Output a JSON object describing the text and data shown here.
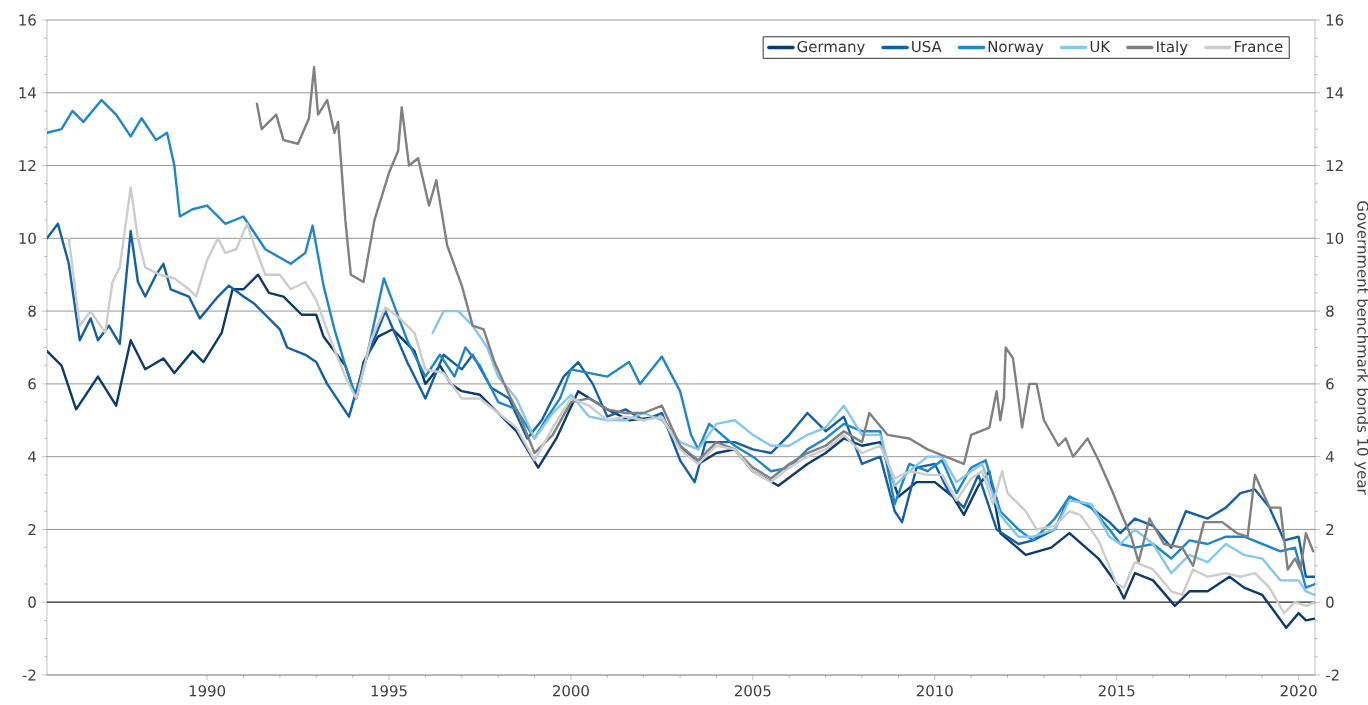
{
  "chart_data": {
    "type": "line",
    "y2label": "Government benchmark bonds 10 year",
    "xlim": [
      1985.6,
      2020.45
    ],
    "xticks": [
      1990,
      1995,
      2000,
      2005,
      2010,
      2015,
      2020
    ],
    "ylim": [
      -2,
      16
    ],
    "yticks": [
      -2,
      0,
      2,
      4,
      6,
      8,
      10,
      12,
      14,
      16
    ],
    "y2lim": [
      -2,
      16
    ],
    "y2ticks": [
      -2,
      0,
      2,
      4,
      6,
      8,
      10,
      12,
      14,
      16
    ],
    "grid": "y",
    "legend": "top right",
    "ref_lines": [
      {
        "axis": "y",
        "value": 0,
        "color": "#404040"
      }
    ],
    "series": [
      {
        "name": "Germany",
        "color": "#0b3a6b",
        "x": [
          1985.6,
          1986.0,
          1986.4,
          1987.0,
          1987.5,
          1987.9,
          1988.3,
          1988.8,
          1989.1,
          1989.6,
          1989.9,
          1990.4,
          1990.7,
          1991.0,
          1991.4,
          1991.7,
          1992.1,
          1992.6,
          1993.0,
          1993.2,
          1993.8,
          1994.1,
          1994.3,
          1994.7,
          1995.1,
          1995.7,
          1996.0,
          1996.4,
          1996.7,
          1997.0,
          1997.5,
          1998.0,
          1998.5,
          1999.1,
          1999.6,
          2000.2,
          2001.0,
          2001.6,
          2002.5,
          2003.0,
          2003.5,
          2004.0,
          2004.5,
          2005.0,
          2005.7,
          2006.5,
          2007.0,
          2007.5,
          2008.0,
          2008.5,
          2009.0,
          2009.5,
          2010.0,
          2010.5,
          2010.8,
          2011.2,
          2011.5,
          2011.8,
          2012.5,
          2013.2,
          2013.7,
          2014.5,
          2015.0,
          2015.2,
          2015.5,
          2016.0,
          2016.6,
          2017.0,
          2017.5,
          2018.1,
          2018.5,
          2019.0,
          2019.66,
          2020.0,
          2020.2,
          2020.45
        ],
        "values": [
          6.9,
          6.5,
          5.3,
          6.2,
          5.4,
          7.2,
          6.4,
          6.7,
          6.3,
          6.9,
          6.6,
          7.4,
          8.6,
          8.6,
          9.0,
          8.5,
          8.4,
          7.9,
          7.9,
          7.3,
          6.5,
          5.6,
          6.6,
          7.3,
          7.5,
          6.9,
          6.0,
          6.5,
          6.0,
          5.8,
          5.7,
          5.2,
          4.7,
          3.7,
          4.5,
          5.8,
          5.3,
          5.0,
          5.1,
          4.3,
          3.8,
          4.1,
          4.2,
          3.6,
          3.2,
          3.8,
          4.1,
          4.5,
          4.3,
          4.4,
          2.9,
          3.3,
          3.3,
          2.9,
          2.4,
          3.2,
          3.6,
          1.9,
          1.3,
          1.5,
          1.9,
          1.2,
          0.5,
          0.1,
          0.8,
          0.6,
          -0.1,
          0.3,
          0.3,
          0.7,
          0.4,
          0.2,
          -0.7,
          -0.3,
          -0.5,
          -0.45
        ]
      },
      {
        "name": "USA",
        "color": "#1560a5",
        "x": [
          1985.6,
          1985.9,
          1986.2,
          1986.5,
          1986.8,
          1987.0,
          1987.3,
          1987.6,
          1987.9,
          1988.1,
          1988.3,
          1988.6,
          1988.8,
          1989.0,
          1989.5,
          1989.8,
          1990.3,
          1990.6,
          1991.0,
          1991.3,
          1991.6,
          1992.0,
          1992.2,
          1992.7,
          1993.0,
          1993.3,
          1993.9,
          1994.3,
          1994.9,
          1995.5,
          1996.0,
          1996.5,
          1997.0,
          1997.3,
          1997.8,
          1998.3,
          1998.8,
          1999.2,
          1999.8,
          2000.2,
          2000.6,
          2001.0,
          2001.5,
          2002.0,
          2002.5,
          2003.0,
          2003.4,
          2003.7,
          2004.5,
          2005.0,
          2005.5,
          2006.0,
          2006.5,
          2007.0,
          2007.5,
          2008.0,
          2008.5,
          2008.9,
          2009.1,
          2009.5,
          2010.0,
          2010.4,
          2010.8,
          2011.2,
          2011.7,
          2012.3,
          2012.7,
          2013.3,
          2013.7,
          2014.3,
          2014.8,
          2015.1,
          2015.5,
          2016.0,
          2016.5,
          2016.9,
          2017.5,
          2018.0,
          2018.4,
          2018.8,
          2019.2,
          2019.6,
          2020.0,
          2020.2,
          2020.45
        ],
        "values": [
          10.0,
          10.4,
          9.3,
          7.2,
          7.8,
          7.2,
          7.6,
          7.1,
          10.2,
          8.8,
          8.4,
          9.0,
          9.3,
          8.6,
          8.4,
          7.8,
          8.4,
          8.7,
          8.4,
          8.2,
          7.9,
          7.5,
          7.0,
          6.8,
          6.6,
          6.0,
          5.1,
          6.5,
          8.0,
          6.6,
          5.6,
          6.8,
          6.4,
          6.8,
          5.9,
          5.6,
          4.5,
          5.0,
          6.2,
          6.6,
          6.0,
          5.1,
          5.3,
          5.0,
          5.2,
          3.9,
          3.3,
          4.4,
          4.4,
          4.2,
          4.1,
          4.6,
          5.2,
          4.7,
          5.1,
          3.8,
          4.0,
          2.5,
          2.2,
          3.7,
          3.8,
          3.0,
          2.6,
          3.5,
          2.0,
          1.6,
          1.7,
          2.0,
          2.9,
          2.6,
          2.2,
          1.9,
          2.3,
          2.1,
          1.5,
          2.5,
          2.3,
          2.6,
          3.0,
          3.1,
          2.6,
          1.7,
          1.8,
          0.7,
          0.7
        ]
      },
      {
        "name": "Norway",
        "color": "#2086c8",
        "x": [
          1985.6,
          1986.0,
          1986.3,
          1986.6,
          1987.1,
          1987.5,
          1987.9,
          1988.2,
          1988.6,
          1988.9,
          1989.1,
          1989.25,
          1989.6,
          1990.0,
          1990.5,
          1991.0,
          1991.6,
          1992.3,
          1992.7,
          1992.9,
          1993.2,
          1993.5,
          1993.8,
          1994.1,
          1994.4,
          1994.86,
          1995.2,
          1995.5,
          1996.0,
          1996.4,
          1996.8,
          1997.1,
          1997.5,
          1998.0,
          1998.5,
          1999.0,
          1999.3,
          1999.7,
          2000.0,
          2000.5,
          2001.0,
          2001.6,
          2001.9,
          2002.5,
          2003.0,
          2003.3,
          2003.5,
          2003.8,
          2004.5,
          2005.0,
          2005.5,
          2006.0,
          2006.5,
          2007.0,
          2007.5,
          2008.0,
          2008.5,
          2008.9,
          2009.3,
          2009.8,
          2010.2,
          2010.6,
          2011.0,
          2011.4,
          2011.8,
          2012.3,
          2012.7,
          2013.3,
          2013.7,
          2014.3,
          2014.8,
          2015.1,
          2015.5,
          2016.0,
          2016.5,
          2017.0,
          2017.5,
          2018.0,
          2018.5,
          2019.0,
          2019.5,
          2019.9,
          2020.2,
          2020.45
        ],
        "values": [
          12.9,
          13.0,
          13.5,
          13.2,
          13.8,
          13.4,
          12.8,
          13.3,
          12.7,
          12.9,
          12.0,
          10.6,
          10.8,
          10.9,
          10.4,
          10.6,
          9.7,
          9.3,
          9.6,
          10.35,
          8.7,
          7.5,
          6.5,
          5.6,
          6.8,
          8.9,
          8.0,
          7.2,
          6.2,
          6.8,
          6.2,
          7.0,
          6.5,
          5.5,
          5.3,
          4.5,
          5.0,
          5.6,
          6.4,
          6.3,
          6.2,
          6.6,
          6.0,
          6.75,
          5.8,
          4.6,
          4.2,
          4.9,
          4.3,
          4.0,
          3.6,
          3.7,
          4.2,
          4.5,
          4.9,
          4.7,
          4.7,
          2.7,
          3.8,
          3.6,
          3.9,
          3.0,
          3.7,
          3.9,
          2.5,
          2.0,
          1.7,
          2.3,
          2.9,
          2.6,
          2.0,
          1.6,
          1.5,
          1.6,
          1.2,
          1.7,
          1.6,
          1.8,
          1.8,
          1.6,
          1.4,
          1.5,
          0.4,
          0.5
        ]
      },
      {
        "name": "UK",
        "color": "#86c7ea",
        "x": [
          1996.2,
          1996.5,
          1996.9,
          1997.3,
          1997.7,
          1998.0,
          1998.5,
          1999.0,
          1999.5,
          2000.0,
          2000.5,
          2001.0,
          2001.5,
          2002.0,
          2002.5,
          2003.0,
          2003.5,
          2004.0,
          2004.5,
          2005.0,
          2005.5,
          2006.0,
          2006.5,
          2007.0,
          2007.5,
          2008.0,
          2008.5,
          2008.9,
          2009.3,
          2009.8,
          2010.2,
          2010.6,
          2011.0,
          2011.3,
          2011.8,
          2012.3,
          2012.7,
          2013.3,
          2013.7,
          2014.3,
          2014.8,
          2015.1,
          2015.5,
          2016.0,
          2016.5,
          2017.0,
          2017.5,
          2018.0,
          2018.5,
          2019.0,
          2019.5,
          2020.0,
          2020.2,
          2020.45
        ],
        "values": [
          7.4,
          8.0,
          8.0,
          7.6,
          7.0,
          6.2,
          5.6,
          4.5,
          5.2,
          5.7,
          5.1,
          5.0,
          5.0,
          5.2,
          5.0,
          4.4,
          4.2,
          4.9,
          5.0,
          4.6,
          4.3,
          4.3,
          4.6,
          4.8,
          5.4,
          4.6,
          4.6,
          3.2,
          3.6,
          4.0,
          4.0,
          3.3,
          3.6,
          3.8,
          2.4,
          1.8,
          1.8,
          2.0,
          2.8,
          2.7,
          1.8,
          1.6,
          2.0,
          1.6,
          0.8,
          1.3,
          1.1,
          1.6,
          1.3,
          1.2,
          0.6,
          0.6,
          0.3,
          0.2
        ]
      },
      {
        "name": "Italy",
        "color": "#808080",
        "x": [
          1991.37,
          1991.5,
          1991.9,
          1992.1,
          1992.5,
          1992.8,
          1992.94,
          1993.05,
          1993.3,
          1993.5,
          1993.6,
          1993.8,
          1993.95,
          1994.3,
          1994.6,
          1995.0,
          1995.25,
          1995.35,
          1995.55,
          1995.8,
          1996.1,
          1996.3,
          1996.6,
          1997.0,
          1997.3,
          1997.6,
          1997.9,
          1998.3,
          1998.6,
          1999.0,
          1999.5,
          2000.0,
          2000.5,
          2001.0,
          2001.5,
          2002.0,
          2002.5,
          2003.0,
          2003.5,
          2004.0,
          2004.5,
          2005.0,
          2005.5,
          2006.0,
          2006.5,
          2007.0,
          2007.5,
          2008.0,
          2008.2,
          2008.7,
          2009.3,
          2009.8,
          2010.3,
          2010.8,
          2011.0,
          2011.5,
          2011.7,
          2011.8,
          2011.9,
          2011.95,
          2012.15,
          2012.4,
          2012.6,
          2012.8,
          2013.0,
          2013.4,
          2013.6,
          2013.8,
          2014.2,
          2014.5,
          2014.9,
          2015.1,
          2015.4,
          2015.6,
          2015.9,
          2016.3,
          2016.8,
          2017.1,
          2017.4,
          2017.9,
          2018.3,
          2018.6,
          2018.8,
          2019.2,
          2019.5,
          2019.7,
          2019.9,
          2020.05,
          2020.2,
          2020.4
        ],
        "values": [
          13.7,
          13.0,
          13.4,
          12.7,
          12.6,
          13.3,
          14.7,
          13.4,
          13.8,
          12.9,
          13.2,
          10.5,
          9.0,
          8.8,
          10.5,
          11.8,
          12.4,
          13.6,
          12.0,
          12.2,
          10.9,
          11.6,
          9.8,
          8.7,
          7.6,
          7.5,
          6.6,
          5.7,
          5.1,
          4.1,
          4.6,
          5.5,
          5.6,
          5.3,
          5.2,
          5.2,
          5.4,
          4.3,
          3.9,
          4.4,
          4.2,
          3.7,
          3.4,
          3.8,
          4.1,
          4.3,
          4.7,
          4.4,
          5.2,
          4.6,
          4.5,
          4.2,
          4.0,
          3.8,
          4.6,
          4.8,
          5.8,
          5.0,
          5.6,
          7.0,
          6.7,
          4.8,
          6.0,
          6.0,
          5.0,
          4.3,
          4.5,
          4.0,
          4.5,
          3.9,
          3.0,
          2.5,
          1.8,
          1.1,
          2.3,
          1.6,
          1.5,
          1.0,
          2.2,
          2.2,
          1.9,
          1.8,
          3.5,
          2.6,
          2.6,
          0.9,
          1.2,
          0.9,
          1.9,
          1.4
        ]
      },
      {
        "name": "France",
        "color": "#cccccc",
        "x": [
          1986.2,
          1986.5,
          1986.8,
          1987.2,
          1987.4,
          1987.6,
          1987.9,
          1988.1,
          1988.3,
          1988.7,
          1989.1,
          1989.5,
          1989.7,
          1990.0,
          1990.3,
          1990.5,
          1990.8,
          1991.1,
          1991.3,
          1991.6,
          1992.0,
          1992.3,
          1992.7,
          1993.0,
          1993.4,
          1993.8,
          1994.1,
          1994.5,
          1994.9,
          1995.3,
          1995.7,
          1996.0,
          1996.5,
          1997.0,
          1997.5,
          1998.0,
          1998.5,
          1999.0,
          1999.5,
          2000.0,
          2000.5,
          2001.0,
          2001.5,
          2002.0,
          2002.5,
          2003.0,
          2003.5,
          2004.0,
          2004.5,
          2005.0,
          2005.5,
          2006.0,
          2006.5,
          2007.0,
          2007.5,
          2008.0,
          2008.5,
          2008.9,
          2009.3,
          2009.8,
          2010.2,
          2010.6,
          2011.0,
          2011.3,
          2011.6,
          2011.85,
          2012.0,
          2012.5,
          2012.8,
          2013.3,
          2013.7,
          2014.0,
          2014.5,
          2015.0,
          2015.2,
          2015.5,
          2016.0,
          2016.5,
          2016.8,
          2017.1,
          2017.5,
          2018.0,
          2018.4,
          2018.8,
          2019.2,
          2019.6,
          2019.9,
          2020.2,
          2020.45
        ],
        "values": [
          10.0,
          7.6,
          8.0,
          7.4,
          8.8,
          9.2,
          11.4,
          10.0,
          9.2,
          9.0,
          8.9,
          8.6,
          8.4,
          9.4,
          10.0,
          9.6,
          9.7,
          10.4,
          9.8,
          9.0,
          9.0,
          8.6,
          8.8,
          8.3,
          7.2,
          6.2,
          5.6,
          7.2,
          8.1,
          7.8,
          7.4,
          6.4,
          6.3,
          5.6,
          5.6,
          5.2,
          4.8,
          3.9,
          4.8,
          5.6,
          5.4,
          5.0,
          5.1,
          5.0,
          5.1,
          4.2,
          3.8,
          4.3,
          4.2,
          3.6,
          3.3,
          3.7,
          4.0,
          4.2,
          4.6,
          4.1,
          4.3,
          3.4,
          3.6,
          3.5,
          3.5,
          2.8,
          3.4,
          3.6,
          2.7,
          3.6,
          3.0,
          2.5,
          2.0,
          2.1,
          2.5,
          2.4,
          1.7,
          0.5,
          0.4,
          1.1,
          0.9,
          0.3,
          0.2,
          0.9,
          0.7,
          0.8,
          0.7,
          0.8,
          0.4,
          -0.3,
          0.0,
          -0.1,
          0.0
        ]
      }
    ]
  }
}
